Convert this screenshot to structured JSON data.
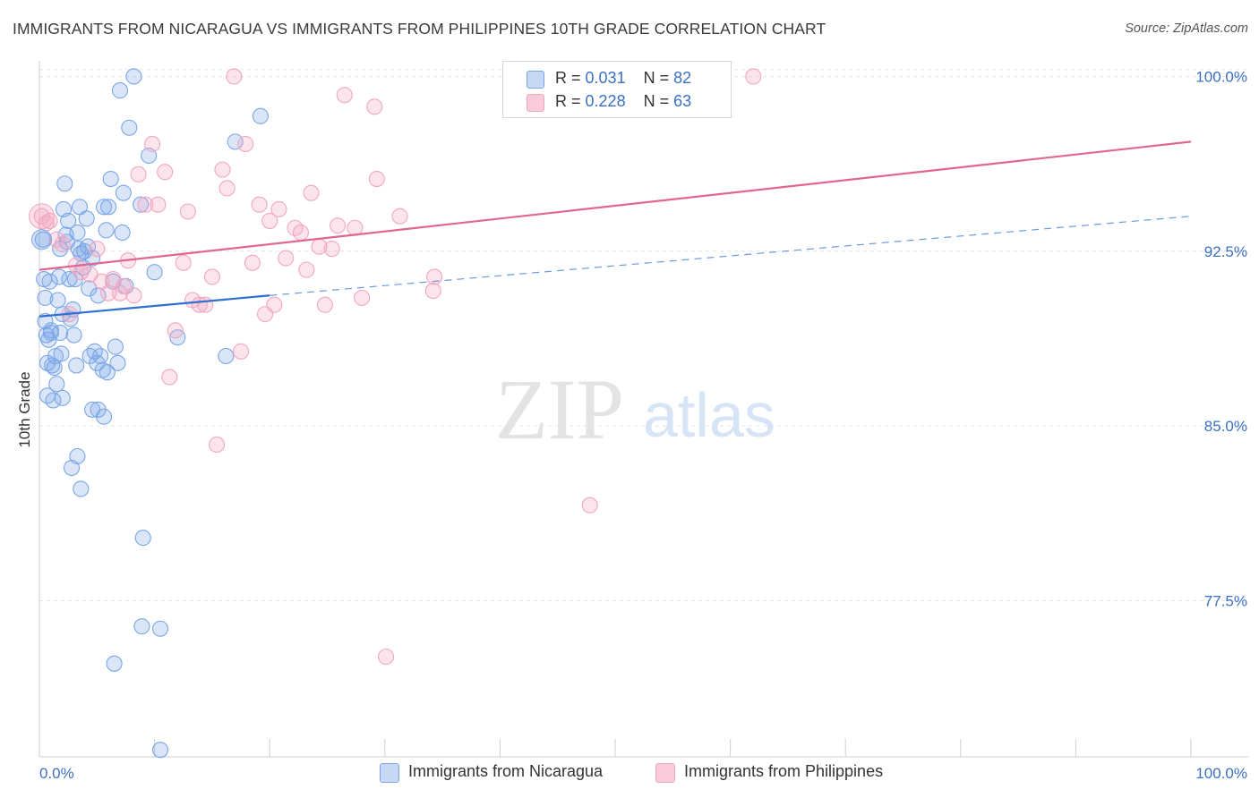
{
  "title": "IMMIGRANTS FROM NICARAGUA VS IMMIGRANTS FROM PHILIPPINES 10TH GRADE CORRELATION CHART",
  "source": "Source: ZipAtlas.com",
  "watermark": {
    "zip": "ZIP",
    "atlas": "atlas"
  },
  "legend": {
    "r_label": "R =",
    "n_label": "N =",
    "rows": [
      {
        "r": "0.031",
        "n": "82"
      },
      {
        "r": "0.228",
        "n": "63"
      }
    ]
  },
  "chart_data": {
    "type": "scatter",
    "xlabel": "",
    "ylabel": "10th Grade",
    "xlim": [
      0,
      100
    ],
    "ylim": [
      70.8,
      100.9
    ],
    "x_tick_labels": {
      "left": "0.0%",
      "right": "100.0%"
    },
    "y_ticks": [
      {
        "value": 100.0,
        "label": "100.0%"
      },
      {
        "value": 92.5,
        "label": "92.5%"
      },
      {
        "value": 85.0,
        "label": "85.0%"
      },
      {
        "value": 77.5,
        "label": "77.5%"
      }
    ],
    "grid": true,
    "series": [
      {
        "name": "Immigrants from Nicaragua",
        "color": "#7aa6e6",
        "line_color": "#2f6fd0",
        "trend_solid": {
          "x": [
            0,
            20
          ],
          "y": [
            89.7,
            90.6
          ]
        },
        "trend_dashed": {
          "x": [
            20,
            100
          ],
          "y": [
            90.6,
            94.0
          ]
        },
        "points": [
          [
            0.3,
            93.0
          ],
          [
            0.4,
            91.3
          ],
          [
            0.5,
            89.5
          ],
          [
            0.6,
            88.9
          ],
          [
            0.7,
            87.7
          ],
          [
            0.7,
            86.3
          ],
          [
            0.9,
            91.2
          ],
          [
            1.0,
            89.1
          ],
          [
            1.1,
            87.6
          ],
          [
            1.2,
            86.1
          ],
          [
            1.4,
            88.0
          ],
          [
            1.5,
            86.8
          ],
          [
            1.6,
            90.4
          ],
          [
            1.7,
            91.4
          ],
          [
            1.8,
            89.0
          ],
          [
            1.9,
            88.1
          ],
          [
            2.0,
            86.2
          ],
          [
            2.1,
            94.3
          ],
          [
            2.2,
            95.4
          ],
          [
            2.3,
            93.2
          ],
          [
            2.4,
            92.9
          ],
          [
            2.5,
            93.8
          ],
          [
            2.6,
            91.3
          ],
          [
            2.7,
            89.6
          ],
          [
            2.9,
            90.0
          ],
          [
            3.1,
            91.3
          ],
          [
            3.0,
            88.9
          ],
          [
            3.2,
            87.6
          ],
          [
            3.4,
            92.6
          ],
          [
            3.5,
            94.4
          ],
          [
            3.6,
            92.4
          ],
          [
            3.8,
            91.8
          ],
          [
            3.9,
            92.5
          ],
          [
            4.1,
            93.9
          ],
          [
            4.2,
            92.7
          ],
          [
            4.3,
            90.9
          ],
          [
            4.6,
            92.2
          ],
          [
            4.8,
            88.2
          ],
          [
            5.0,
            87.7
          ],
          [
            5.1,
            90.6
          ],
          [
            5.3,
            88.0
          ],
          [
            5.5,
            87.4
          ],
          [
            5.6,
            94.4
          ],
          [
            5.8,
            93.4
          ],
          [
            6.0,
            94.4
          ],
          [
            6.2,
            95.6
          ],
          [
            6.4,
            91.2
          ],
          [
            6.6,
            88.4
          ],
          [
            6.8,
            87.7
          ],
          [
            7.0,
            99.4
          ],
          [
            7.3,
            95.0
          ],
          [
            7.5,
            91.0
          ],
          [
            7.8,
            97.8
          ],
          [
            8.2,
            100.0
          ],
          [
            8.8,
            94.5
          ],
          [
            9.5,
            96.6
          ],
          [
            10.0,
            91.6
          ],
          [
            12.0,
            88.8
          ],
          [
            16.2,
            88.0
          ],
          [
            17.0,
            97.2
          ],
          [
            19.2,
            98.3
          ],
          [
            3.3,
            83.7
          ],
          [
            2.8,
            83.2
          ],
          [
            3.6,
            82.3
          ],
          [
            4.6,
            85.7
          ],
          [
            5.1,
            85.7
          ],
          [
            5.6,
            85.4
          ],
          [
            9.0,
            80.2
          ],
          [
            8.9,
            76.4
          ],
          [
            10.5,
            76.3
          ],
          [
            6.5,
            74.8
          ],
          [
            10.5,
            71.1
          ],
          [
            1.0,
            89.0
          ],
          [
            0.8,
            88.7
          ],
          [
            1.3,
            87.5
          ],
          [
            4.4,
            88.0
          ],
          [
            5.9,
            87.3
          ],
          [
            1.8,
            92.6
          ],
          [
            0.5,
            90.5
          ],
          [
            7.2,
            93.3
          ],
          [
            3.3,
            93.3
          ],
          [
            2.0,
            89.8
          ]
        ]
      },
      {
        "name": "Immigrants from Philippines",
        "color": "#f2a6c0",
        "line_color": "#e06690",
        "trend_solid": {
          "x": [
            0,
            100
          ],
          "y": [
            91.7,
            97.2
          ]
        },
        "points": [
          [
            0.2,
            94.0
          ],
          [
            0.6,
            93.7
          ],
          [
            0.9,
            93.8
          ],
          [
            1.5,
            93.0
          ],
          [
            2.0,
            92.8
          ],
          [
            2.6,
            89.8
          ],
          [
            3.2,
            91.9
          ],
          [
            3.6,
            91.6
          ],
          [
            4.4,
            91.5
          ],
          [
            5.0,
            92.6
          ],
          [
            5.4,
            91.2
          ],
          [
            6.0,
            90.7
          ],
          [
            6.4,
            91.3
          ],
          [
            7.0,
            90.7
          ],
          [
            7.3,
            91.0
          ],
          [
            7.7,
            92.1
          ],
          [
            8.2,
            90.6
          ],
          [
            8.6,
            95.8
          ],
          [
            9.2,
            94.5
          ],
          [
            9.8,
            97.1
          ],
          [
            10.3,
            94.5
          ],
          [
            10.9,
            95.9
          ],
          [
            11.3,
            87.1
          ],
          [
            11.8,
            89.1
          ],
          [
            12.5,
            92.0
          ],
          [
            12.9,
            94.2
          ],
          [
            13.3,
            90.4
          ],
          [
            13.9,
            90.2
          ],
          [
            14.4,
            90.2
          ],
          [
            15.0,
            91.4
          ],
          [
            15.4,
            84.2
          ],
          [
            15.9,
            96.0
          ],
          [
            16.3,
            95.2
          ],
          [
            16.9,
            100.0
          ],
          [
            17.5,
            88.2
          ],
          [
            17.9,
            97.1
          ],
          [
            18.5,
            92.0
          ],
          [
            19.1,
            94.5
          ],
          [
            19.6,
            89.8
          ],
          [
            20.0,
            93.8
          ],
          [
            20.4,
            90.2
          ],
          [
            20.8,
            94.3
          ],
          [
            21.4,
            92.2
          ],
          [
            22.2,
            93.5
          ],
          [
            22.7,
            93.3
          ],
          [
            23.2,
            91.7
          ],
          [
            23.6,
            95.0
          ],
          [
            24.3,
            92.7
          ],
          [
            24.8,
            90.2
          ],
          [
            25.4,
            92.6
          ],
          [
            25.9,
            93.6
          ],
          [
            26.5,
            99.2
          ],
          [
            27.4,
            93.5
          ],
          [
            28.0,
            90.5
          ],
          [
            29.1,
            98.7
          ],
          [
            29.3,
            95.6
          ],
          [
            31.3,
            94.0
          ],
          [
            34.3,
            91.4
          ],
          [
            34.2,
            90.8
          ],
          [
            47.8,
            81.6
          ],
          [
            30.1,
            75.1
          ],
          [
            56.5,
            100.0
          ],
          [
            62.0,
            100.0
          ]
        ]
      }
    ]
  }
}
